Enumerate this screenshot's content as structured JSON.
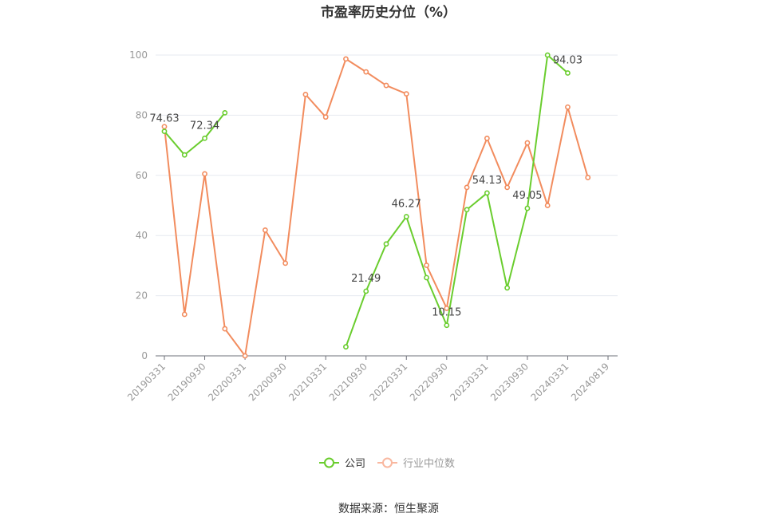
{
  "chart_data": {
    "type": "line",
    "title": "市盈率历史分位（%）",
    "source": "数据来源：恒生聚源",
    "x": [
      "20190331",
      "20190630",
      "20190930",
      "20191231",
      "20200331",
      "20200630",
      "20200930",
      "20201231",
      "20210331",
      "20210630",
      "20210930",
      "20211231",
      "20220331",
      "20220630",
      "20220930",
      "20221231",
      "20230331",
      "20230630",
      "20230930",
      "20231231",
      "20240331",
      "20240630",
      "20240819"
    ],
    "xtick_labels": [
      "20190331",
      "20190930",
      "20200331",
      "20200930",
      "20210331",
      "20210930",
      "20220331",
      "20220930",
      "20230331",
      "20230930",
      "20240331",
      "20240819"
    ],
    "ylim": [
      0,
      100
    ],
    "yticks": [
      0,
      20,
      40,
      60,
      80,
      100
    ],
    "grid": true,
    "legend_position": "bottom",
    "series": [
      {
        "name": "公司",
        "color": "#6acd2e",
        "values": [
          74.63,
          66.8,
          72.34,
          80.8,
          null,
          null,
          null,
          null,
          null,
          3.0,
          21.49,
          37.2,
          46.27,
          26.0,
          10.15,
          48.6,
          54.13,
          22.6,
          49.05,
          100.0,
          94.03,
          null,
          null
        ],
        "labels": [
          {
            "index": 0,
            "text": "74.63"
          },
          {
            "index": 2,
            "text": "72.34"
          },
          {
            "index": 10,
            "text": "21.49"
          },
          {
            "index": 12,
            "text": "46.27"
          },
          {
            "index": 14,
            "text": "10.15"
          },
          {
            "index": 16,
            "text": "54.13"
          },
          {
            "index": 18,
            "text": "49.05"
          },
          {
            "index": 20,
            "text": "94.03"
          }
        ]
      },
      {
        "name": "行业中位数",
        "color": "#f28c5e",
        "values": [
          76.2,
          13.8,
          60.5,
          9.0,
          0.0,
          41.8,
          30.8,
          86.9,
          79.4,
          98.7,
          94.4,
          89.9,
          87.1,
          30.1,
          15.8,
          56.0,
          72.3,
          56.0,
          70.8,
          50.0,
          82.7,
          59.3,
          null
        ]
      }
    ]
  }
}
